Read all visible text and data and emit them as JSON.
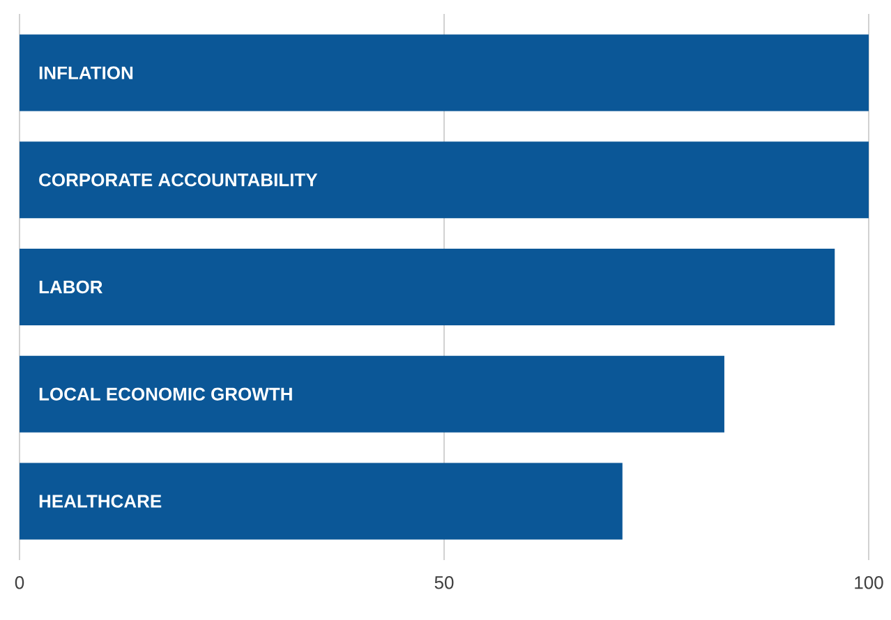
{
  "chart_data": {
    "type": "bar",
    "orientation": "horizontal",
    "categories": [
      "INFLATION",
      "CORPORATE ACCOUNTABILITY",
      "LABOR",
      "LOCAL ECONOMIC GROWTH",
      "HEALTHCARE"
    ],
    "values": [
      100,
      100,
      96,
      83,
      71
    ],
    "color": "#0b5797",
    "xlim": [
      0,
      100
    ],
    "xticks": [
      0,
      50,
      100
    ],
    "grid": "x"
  }
}
